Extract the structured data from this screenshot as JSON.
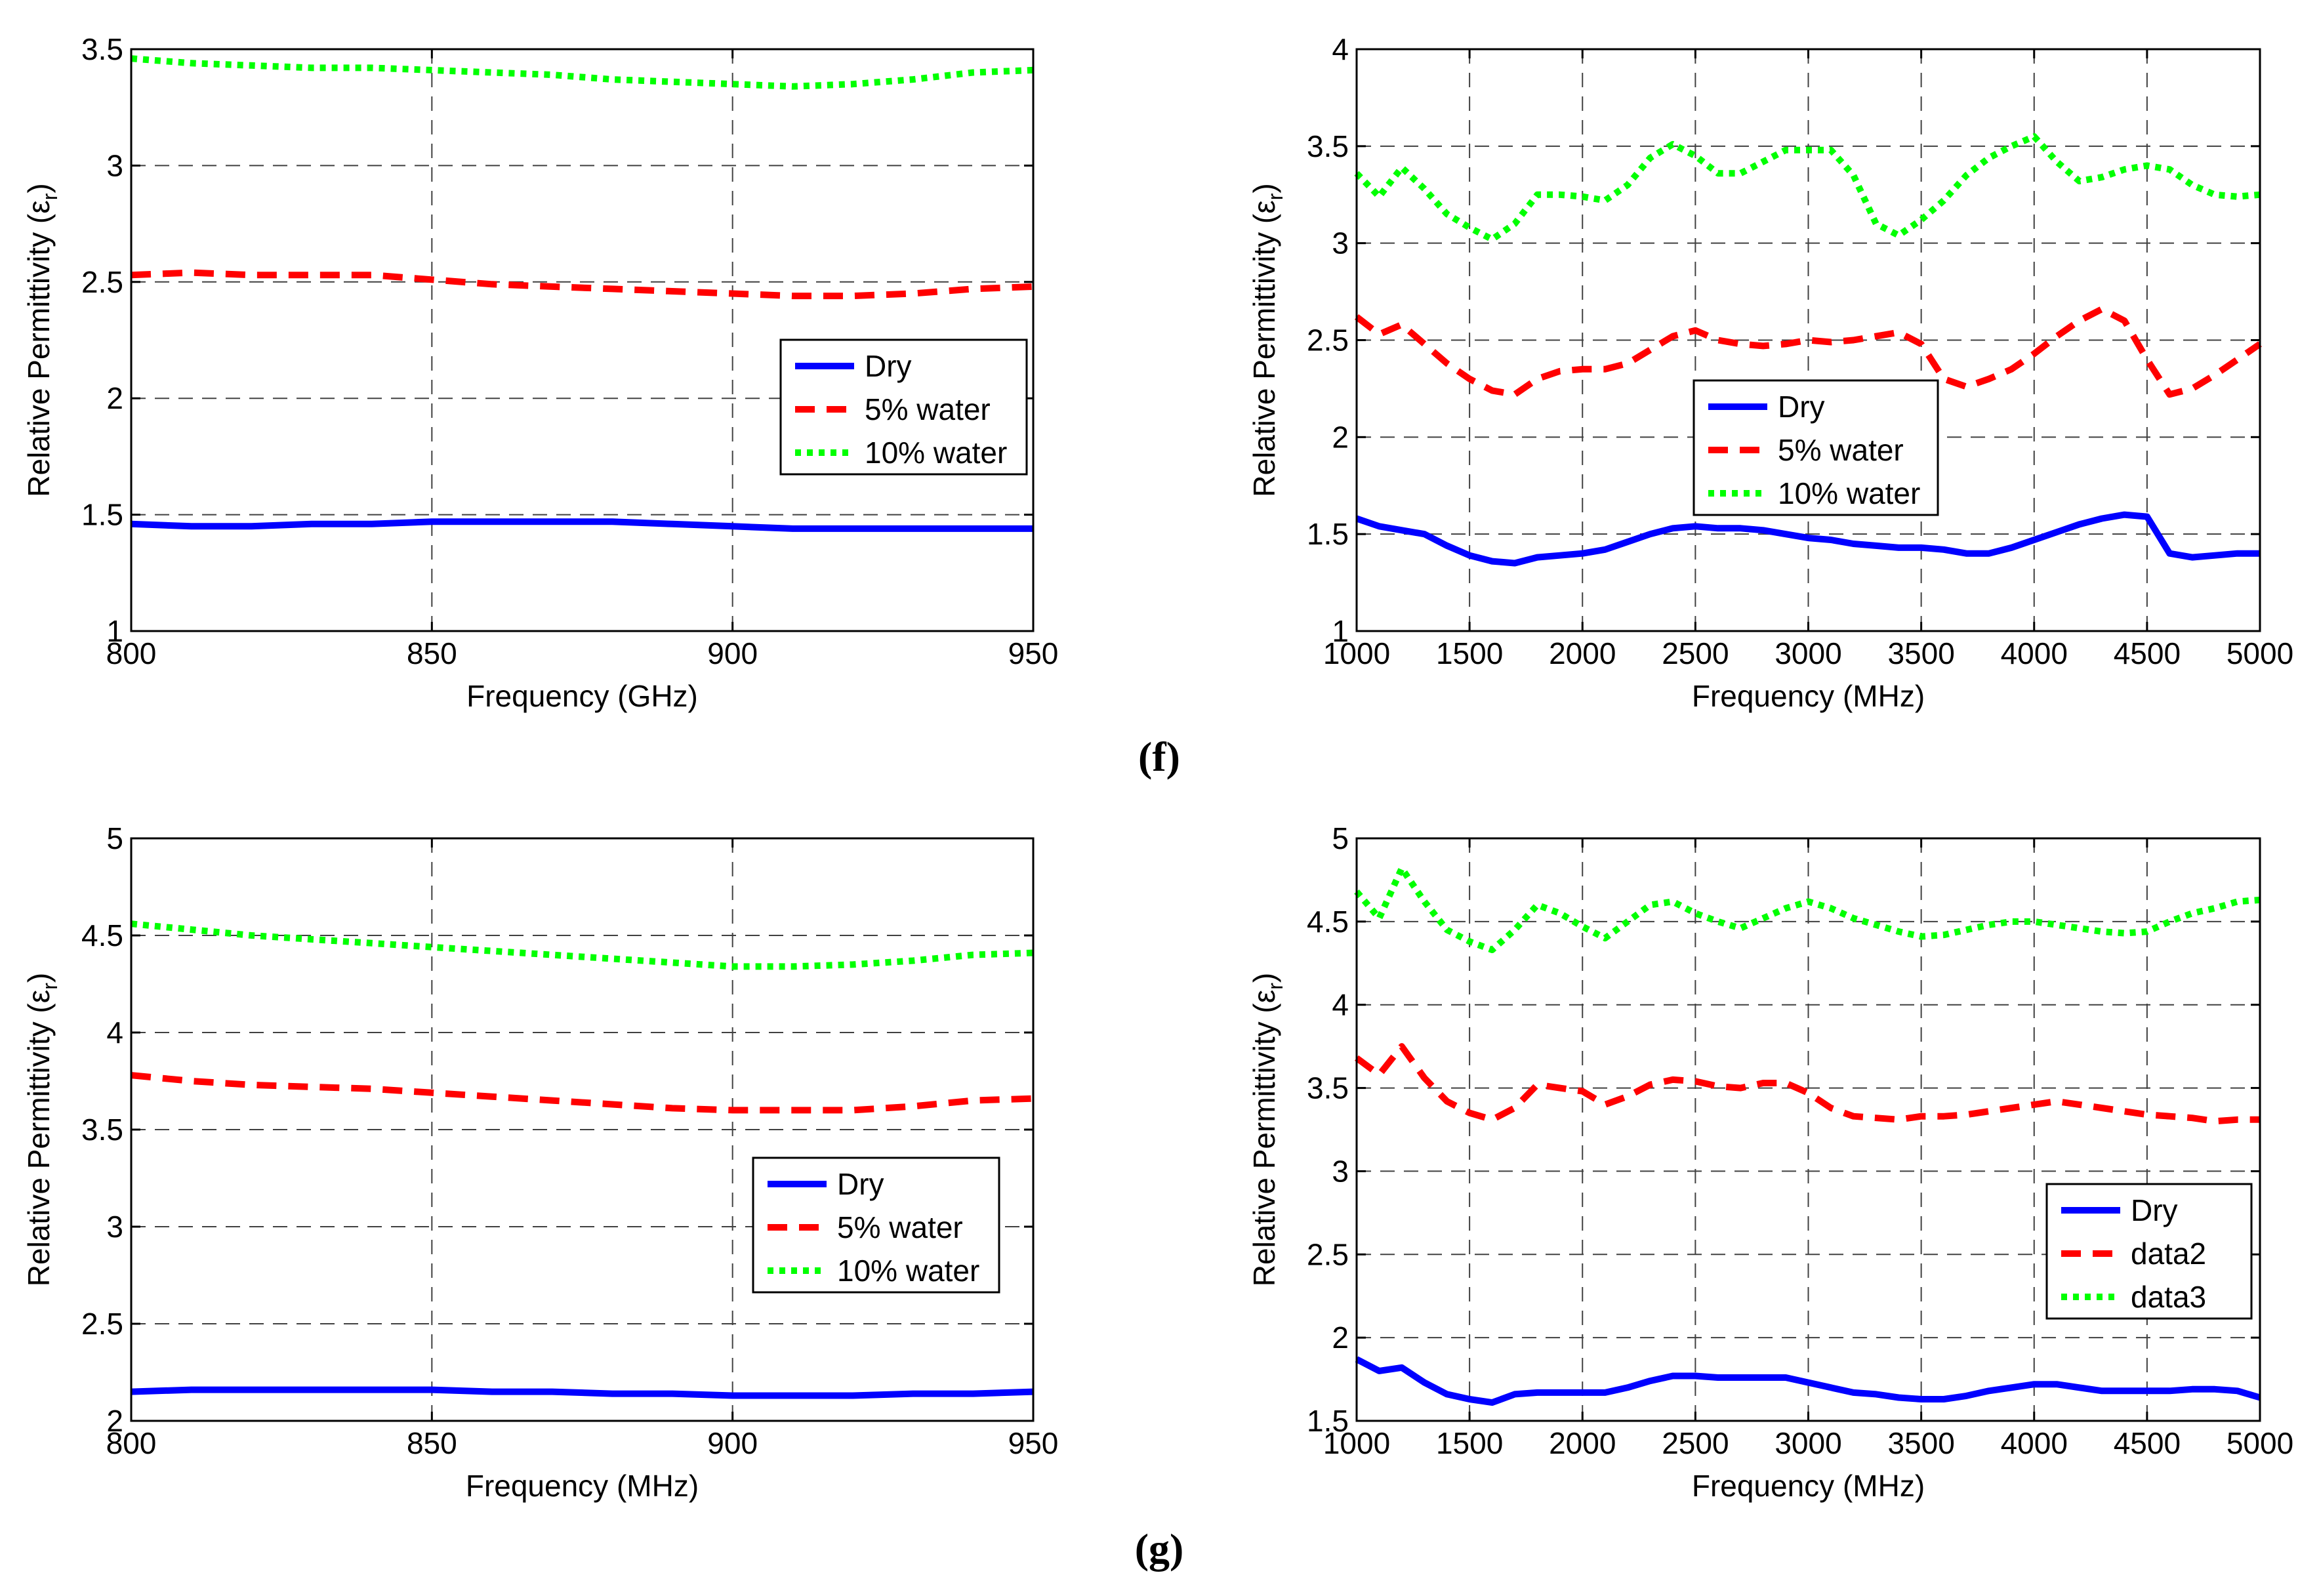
{
  "panels": [
    {
      "label": "(f)"
    },
    {
      "label": "(g)"
    }
  ],
  "chart_data": [
    {
      "type": "line",
      "xlabel": "Frequency (GHz)",
      "ylabel": "Relative Permittivity (ε",
      "ylabel_sub": "r",
      "ylabel_close": ")",
      "xlim": [
        800,
        950
      ],
      "ylim": [
        1,
        3.5
      ],
      "xticks": [
        800,
        850,
        900,
        950
      ],
      "yticks": [
        1,
        1.5,
        2,
        2.5,
        3,
        3.5
      ],
      "xtick_labels": [
        "800",
        "850",
        "900",
        "950"
      ],
      "ytick_labels": [
        "1",
        "1.5",
        "2",
        "2.5",
        "3",
        "3.5"
      ],
      "grid": true,
      "legend_position": "center-right",
      "series": [
        {
          "name": "Dry",
          "color": "#0000ff",
          "style": "solid",
          "x": [
            800,
            810,
            820,
            830,
            840,
            850,
            860,
            870,
            880,
            890,
            900,
            910,
            920,
            930,
            940,
            950
          ],
          "values": [
            1.46,
            1.45,
            1.45,
            1.46,
            1.46,
            1.47,
            1.47,
            1.47,
            1.47,
            1.46,
            1.45,
            1.44,
            1.44,
            1.44,
            1.44,
            1.44
          ]
        },
        {
          "name": "5% water",
          "color": "#ff0000",
          "style": "dashed",
          "x": [
            800,
            810,
            820,
            830,
            840,
            850,
            860,
            870,
            880,
            890,
            900,
            910,
            920,
            930,
            940,
            950
          ],
          "values": [
            2.53,
            2.54,
            2.53,
            2.53,
            2.53,
            2.51,
            2.49,
            2.48,
            2.47,
            2.46,
            2.45,
            2.44,
            2.44,
            2.45,
            2.47,
            2.48
          ]
        },
        {
          "name": "10% water",
          "color": "#00ff00",
          "style": "dotted",
          "x": [
            800,
            810,
            820,
            830,
            840,
            850,
            860,
            870,
            880,
            890,
            900,
            910,
            920,
            930,
            940,
            950
          ],
          "values": [
            3.46,
            3.44,
            3.43,
            3.42,
            3.42,
            3.41,
            3.4,
            3.39,
            3.37,
            3.36,
            3.35,
            3.34,
            3.35,
            3.37,
            3.4,
            3.41
          ]
        }
      ]
    },
    {
      "type": "line",
      "xlabel": "Frequency (MHz)",
      "ylabel": "Relative Permittivity (ε",
      "ylabel_sub": "r",
      "ylabel_close": ")",
      "xlim": [
        1000,
        5000
      ],
      "ylim": [
        1,
        4
      ],
      "xticks": [
        1000,
        1500,
        2000,
        2500,
        3000,
        3500,
        4000,
        4500,
        5000
      ],
      "yticks": [
        1,
        1.5,
        2,
        2.5,
        3,
        3.5,
        4
      ],
      "xtick_labels": [
        "1000",
        "1500",
        "2000",
        "2500",
        "3000",
        "3500",
        "4000",
        "4500",
        "5000"
      ],
      "ytick_labels": [
        "1",
        "1.5",
        "2",
        "2.5",
        "3",
        "3.5",
        "4"
      ],
      "grid": true,
      "legend_position": "center",
      "series": [
        {
          "name": "Dry",
          "color": "#0000ff",
          "style": "solid",
          "x": [
            1000,
            1100,
            1200,
            1300,
            1400,
            1500,
            1600,
            1700,
            1800,
            1900,
            2000,
            2100,
            2200,
            2300,
            2400,
            2500,
            2600,
            2700,
            2800,
            2900,
            3000,
            3100,
            3200,
            3300,
            3400,
            3500,
            3600,
            3700,
            3800,
            3900,
            4000,
            4100,
            4200,
            4300,
            4400,
            4500,
            4600,
            4700,
            4800,
            4900,
            5000
          ],
          "values": [
            1.58,
            1.54,
            1.52,
            1.5,
            1.44,
            1.39,
            1.36,
            1.35,
            1.38,
            1.39,
            1.4,
            1.42,
            1.46,
            1.5,
            1.53,
            1.54,
            1.53,
            1.53,
            1.52,
            1.5,
            1.48,
            1.47,
            1.45,
            1.44,
            1.43,
            1.43,
            1.42,
            1.4,
            1.4,
            1.43,
            1.47,
            1.51,
            1.55,
            1.58,
            1.6,
            1.59,
            1.4,
            1.38,
            1.39,
            1.4,
            1.4
          ]
        },
        {
          "name": "5% water",
          "color": "#ff0000",
          "style": "dashed",
          "x": [
            1000,
            1100,
            1200,
            1300,
            1400,
            1500,
            1600,
            1700,
            1800,
            1900,
            2000,
            2100,
            2200,
            2300,
            2400,
            2500,
            2600,
            2700,
            2800,
            2900,
            3000,
            3100,
            3200,
            3300,
            3400,
            3500,
            3600,
            3700,
            3800,
            3900,
            4000,
            4100,
            4200,
            4300,
            4400,
            4500,
            4600,
            4700,
            4800,
            4900,
            5000
          ],
          "values": [
            2.62,
            2.53,
            2.58,
            2.48,
            2.38,
            2.3,
            2.24,
            2.22,
            2.3,
            2.34,
            2.35,
            2.35,
            2.38,
            2.45,
            2.52,
            2.55,
            2.5,
            2.48,
            2.47,
            2.48,
            2.5,
            2.49,
            2.5,
            2.52,
            2.54,
            2.48,
            2.3,
            2.26,
            2.3,
            2.35,
            2.43,
            2.52,
            2.6,
            2.66,
            2.6,
            2.4,
            2.22,
            2.25,
            2.32,
            2.4,
            2.48
          ]
        },
        {
          "name": "10% water",
          "color": "#00ff00",
          "style": "dotted",
          "x": [
            1000,
            1100,
            1200,
            1300,
            1400,
            1500,
            1600,
            1700,
            1800,
            1900,
            2000,
            2100,
            2200,
            2300,
            2400,
            2500,
            2600,
            2700,
            2800,
            2900,
            3000,
            3100,
            3200,
            3300,
            3400,
            3500,
            3600,
            3700,
            3800,
            3900,
            4000,
            4100,
            4200,
            4300,
            4400,
            4500,
            4600,
            4700,
            4800,
            4900,
            5000
          ],
          "values": [
            3.36,
            3.24,
            3.39,
            3.28,
            3.15,
            3.08,
            3.02,
            3.1,
            3.25,
            3.25,
            3.24,
            3.22,
            3.3,
            3.44,
            3.51,
            3.45,
            3.36,
            3.36,
            3.42,
            3.48,
            3.48,
            3.48,
            3.35,
            3.1,
            3.04,
            3.12,
            3.22,
            3.35,
            3.44,
            3.5,
            3.55,
            3.42,
            3.32,
            3.34,
            3.38,
            3.4,
            3.38,
            3.3,
            3.25,
            3.24,
            3.25
          ]
        }
      ]
    },
    {
      "type": "line",
      "xlabel": "Frequency (MHz)",
      "ylabel": "Relative Permittivity (ε",
      "ylabel_sub": "r",
      "ylabel_close": ")",
      "xlim": [
        800,
        950
      ],
      "ylim": [
        2,
        5
      ],
      "xticks": [
        800,
        850,
        900,
        950
      ],
      "yticks": [
        2,
        2.5,
        3,
        3.5,
        4,
        4.5,
        5
      ],
      "xtick_labels": [
        "800",
        "850",
        "900",
        "950"
      ],
      "ytick_labels": [
        "2",
        "2.5",
        "3",
        "3.5",
        "4",
        "4.5",
        "5"
      ],
      "grid": true,
      "legend_position": "center-right",
      "series": [
        {
          "name": "Dry",
          "color": "#0000ff",
          "style": "solid",
          "x": [
            800,
            810,
            820,
            830,
            840,
            850,
            860,
            870,
            880,
            890,
            900,
            910,
            920,
            930,
            940,
            950
          ],
          "values": [
            2.15,
            2.16,
            2.16,
            2.16,
            2.16,
            2.16,
            2.15,
            2.15,
            2.14,
            2.14,
            2.13,
            2.13,
            2.13,
            2.14,
            2.14,
            2.15
          ]
        },
        {
          "name": "5% water",
          "color": "#ff0000",
          "style": "dashed",
          "x": [
            800,
            810,
            820,
            830,
            840,
            850,
            860,
            870,
            880,
            890,
            900,
            910,
            920,
            930,
            940,
            950
          ],
          "values": [
            3.78,
            3.75,
            3.73,
            3.72,
            3.71,
            3.69,
            3.67,
            3.65,
            3.63,
            3.61,
            3.6,
            3.6,
            3.6,
            3.62,
            3.65,
            3.66
          ]
        },
        {
          "name": "10% water",
          "color": "#00ff00",
          "style": "dotted",
          "x": [
            800,
            810,
            820,
            830,
            840,
            850,
            860,
            870,
            880,
            890,
            900,
            910,
            920,
            930,
            940,
            950
          ],
          "values": [
            4.56,
            4.53,
            4.5,
            4.48,
            4.46,
            4.44,
            4.42,
            4.4,
            4.38,
            4.36,
            4.34,
            4.34,
            4.35,
            4.37,
            4.4,
            4.41
          ]
        }
      ]
    },
    {
      "type": "line",
      "xlabel": "Frequency (MHz)",
      "ylabel": "Relative Permittivity (ε",
      "ylabel_sub": "r",
      "ylabel_close": ")",
      "xlim": [
        1000,
        5000
      ],
      "ylim": [
        1.5,
        5
      ],
      "xticks": [
        1000,
        1500,
        2000,
        2500,
        3000,
        3500,
        4000,
        4500,
        5000
      ],
      "yticks": [
        1.5,
        2,
        2.5,
        3,
        3.5,
        4,
        4.5,
        5
      ],
      "xtick_labels": [
        "1000",
        "1500",
        "2000",
        "2500",
        "3000",
        "3500",
        "4000",
        "4500",
        "5000"
      ],
      "ytick_labels": [
        "1.5",
        "2",
        "2.5",
        "3",
        "3.5",
        "4",
        "4.5",
        "5"
      ],
      "grid": true,
      "legend_position": "bottom-right",
      "series": [
        {
          "name": "Dry",
          "color": "#0000ff",
          "style": "solid",
          "x": [
            1000,
            1100,
            1200,
            1300,
            1400,
            1500,
            1600,
            1700,
            1800,
            1900,
            2000,
            2100,
            2200,
            2300,
            2400,
            2500,
            2600,
            2700,
            2800,
            2900,
            3000,
            3100,
            3200,
            3300,
            3400,
            3500,
            3600,
            3700,
            3800,
            3900,
            4000,
            4100,
            4200,
            4300,
            4400,
            4500,
            4600,
            4700,
            4800,
            4900,
            5000
          ],
          "values": [
            1.87,
            1.8,
            1.82,
            1.73,
            1.66,
            1.63,
            1.61,
            1.66,
            1.67,
            1.67,
            1.67,
            1.67,
            1.7,
            1.74,
            1.77,
            1.77,
            1.76,
            1.76,
            1.76,
            1.76,
            1.73,
            1.7,
            1.67,
            1.66,
            1.64,
            1.63,
            1.63,
            1.65,
            1.68,
            1.7,
            1.72,
            1.72,
            1.7,
            1.68,
            1.68,
            1.68,
            1.68,
            1.69,
            1.69,
            1.68,
            1.64
          ]
        },
        {
          "name": "data2",
          "color": "#ff0000",
          "style": "dashed",
          "x": [
            1000,
            1100,
            1200,
            1300,
            1400,
            1500,
            1600,
            1700,
            1800,
            1900,
            2000,
            2100,
            2200,
            2300,
            2400,
            2500,
            2600,
            2700,
            2800,
            2900,
            3000,
            3100,
            3200,
            3300,
            3400,
            3500,
            3600,
            3700,
            3800,
            3900,
            4000,
            4100,
            4200,
            4300,
            4400,
            4500,
            4600,
            4700,
            4800,
            4900,
            5000
          ],
          "values": [
            3.68,
            3.58,
            3.75,
            3.56,
            3.42,
            3.35,
            3.31,
            3.38,
            3.52,
            3.5,
            3.48,
            3.4,
            3.45,
            3.52,
            3.55,
            3.54,
            3.51,
            3.5,
            3.53,
            3.53,
            3.47,
            3.38,
            3.33,
            3.32,
            3.31,
            3.33,
            3.33,
            3.34,
            3.36,
            3.38,
            3.4,
            3.42,
            3.4,
            3.38,
            3.36,
            3.34,
            3.33,
            3.32,
            3.3,
            3.31,
            3.31
          ]
        },
        {
          "name": "data3",
          "color": "#00ff00",
          "style": "dotted",
          "x": [
            1000,
            1100,
            1200,
            1300,
            1400,
            1500,
            1600,
            1700,
            1800,
            1900,
            2000,
            2100,
            2200,
            2300,
            2400,
            2500,
            2600,
            2700,
            2800,
            2900,
            3000,
            3100,
            3200,
            3300,
            3400,
            3500,
            3600,
            3700,
            3800,
            3900,
            4000,
            4100,
            4200,
            4300,
            4400,
            4500,
            4600,
            4700,
            4800,
            4900,
            5000
          ],
          "values": [
            4.68,
            4.52,
            4.82,
            4.62,
            4.45,
            4.38,
            4.33,
            4.45,
            4.6,
            4.55,
            4.47,
            4.4,
            4.5,
            4.6,
            4.62,
            4.55,
            4.5,
            4.46,
            4.52,
            4.58,
            4.62,
            4.58,
            4.52,
            4.48,
            4.44,
            4.41,
            4.42,
            4.45,
            4.48,
            4.5,
            4.5,
            4.48,
            4.46,
            4.44,
            4.43,
            4.44,
            4.5,
            4.55,
            4.58,
            4.62,
            4.63
          ]
        }
      ]
    }
  ]
}
